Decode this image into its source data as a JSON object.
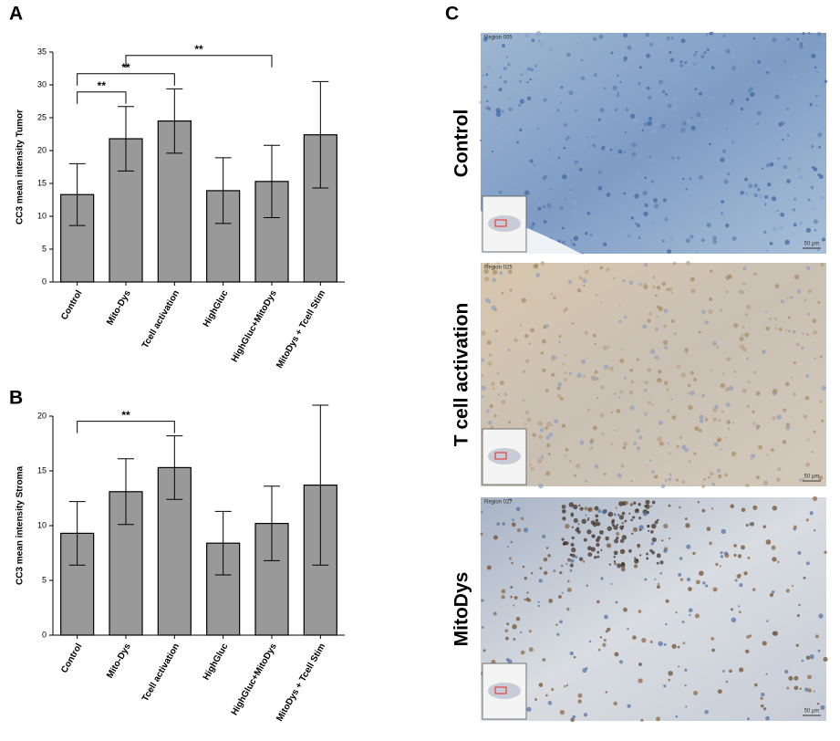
{
  "chart_data": [
    {
      "type": "bar",
      "panel": "A",
      "ylabel": "CC3 mean intensity Tumor",
      "categories": [
        "Control",
        "Mito-Dys",
        "Tcell activation",
        "HighGluc",
        "HighGluc+MitoDys",
        "MitoDys + Tcell Stim"
      ],
      "values": [
        13.3,
        21.8,
        24.5,
        13.9,
        15.3,
        22.4
      ],
      "errors": [
        4.7,
        4.9,
        4.9,
        5.0,
        5.5,
        8.1
      ],
      "color": "#999999",
      "ylim": [
        0,
        35
      ],
      "yticks": [
        0,
        5,
        10,
        15,
        20,
        25,
        30,
        35
      ],
      "annotations": [
        {
          "text": "**",
          "from": 0,
          "to": 1
        },
        {
          "text": "**",
          "from": 0,
          "to": 2
        },
        {
          "text": "**",
          "from": 1,
          "to": 4
        }
      ]
    },
    {
      "type": "bar",
      "panel": "B",
      "ylabel": "CC3 mean intensity Stroma",
      "categories": [
        "Control",
        "Mito-Dys",
        "Tcell activation",
        "HighGluc",
        "HighGluc+MitoDys",
        "MitoDys + Tcell Stim"
      ],
      "values": [
        9.3,
        13.1,
        15.3,
        8.4,
        10.2,
        13.7
      ],
      "errors": [
        2.9,
        3.0,
        2.9,
        2.9,
        3.4,
        7.3
      ],
      "color": "#999999",
      "ylim": [
        0,
        20
      ],
      "yticks": [
        0,
        5,
        10,
        15,
        20
      ],
      "annotations": [
        {
          "text": "**",
          "from": 0,
          "to": 2
        }
      ]
    }
  ],
  "micrographs": {
    "panel": "C",
    "images": [
      {
        "label": "Control",
        "region": "Region 005",
        "scale": "50 µm"
      },
      {
        "label": "T cell activation",
        "region": "Region 025",
        "scale": "50 µm"
      },
      {
        "label": "MitoDys",
        "region": "Region 027",
        "scale": "50 µm"
      }
    ]
  }
}
